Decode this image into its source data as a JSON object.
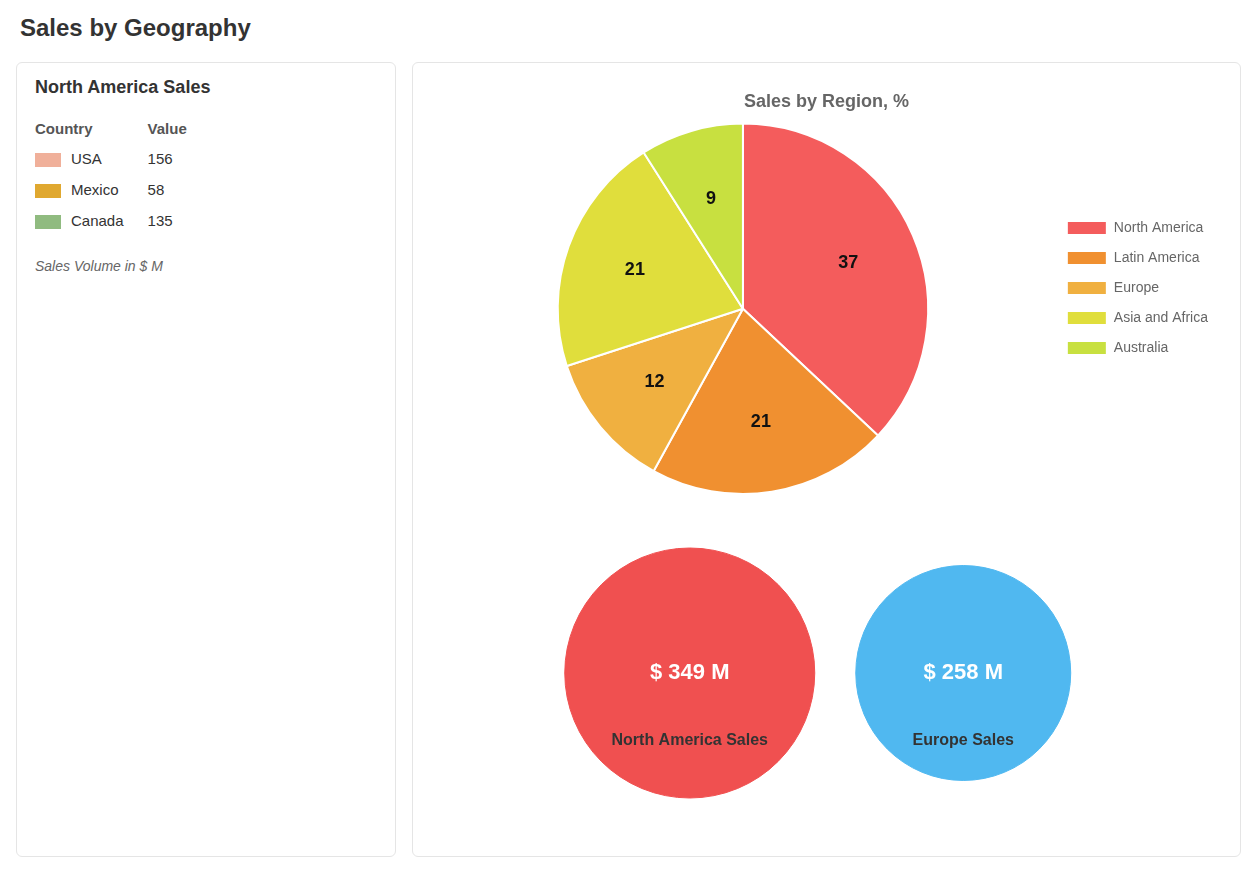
{
  "title": "Sales by Geography",
  "chart_data": [
    {
      "type": "map",
      "title": "North America Sales",
      "categories": [
        "USA",
        "Mexico",
        "Canada"
      ],
      "values": [
        156,
        58,
        135
      ],
      "colors": [
        "#f0b09a",
        "#e0a830",
        "#90bb80"
      ],
      "annotations": [
        "Country",
        "Value",
        "Sales Volume in $ M"
      ]
    },
    {
      "type": "pie",
      "title": "Sales by Region, %",
      "categories": [
        "North America",
        "Latin America",
        "Europe",
        "Asia and Africa",
        "Australia"
      ],
      "values": [
        37,
        21,
        12,
        21,
        9
      ],
      "colors": [
        "#f45c5c",
        "#f09030",
        "#f0b040",
        "#e0de3c",
        "#c8e040"
      ],
      "data_labels": true,
      "legend": "right"
    },
    {
      "type": "bubble",
      "categories": [
        "North America Sales",
        "Europe Sales"
      ],
      "values": [
        349,
        258
      ],
      "value_labels": [
        "$ 349 M",
        "$ 258 M"
      ],
      "colors": [
        "#f05050",
        "#50b8f0"
      ],
      "data_labels": true,
      "tick_labels": false
    }
  ]
}
